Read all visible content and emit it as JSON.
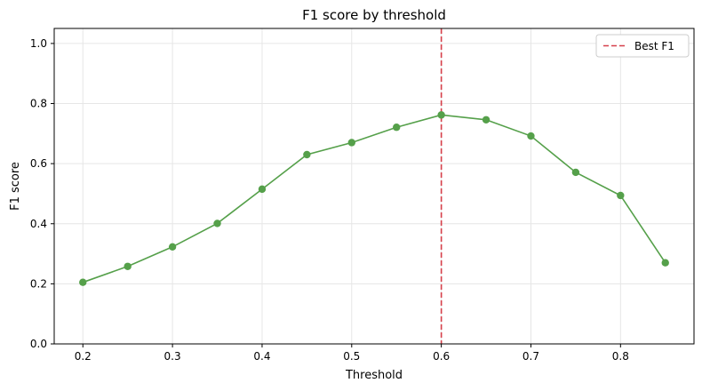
{
  "chart_data": {
    "type": "line",
    "title": "F1 score by threshold",
    "xlabel": "Threshold",
    "ylabel": "F1 score",
    "xlim": [
      0.168,
      0.882
    ],
    "ylim": [
      0.0,
      1.05
    ],
    "xticks": [
      0.2,
      0.3,
      0.4,
      0.5,
      0.6,
      0.7,
      0.8
    ],
    "xtick_labels": [
      "0.2",
      "0.3",
      "0.4",
      "0.5",
      "0.6",
      "0.7",
      "0.8"
    ],
    "yticks": [
      0.0,
      0.2,
      0.4,
      0.6,
      0.8,
      1.0
    ],
    "ytick_labels": [
      "0.0",
      "0.2",
      "0.4",
      "0.6",
      "0.8",
      "1.0"
    ],
    "grid": true,
    "legend_position": "top-right",
    "x": [
      0.2,
      0.25,
      0.3,
      0.35,
      0.4,
      0.45,
      0.5,
      0.55,
      0.6,
      0.65,
      0.7,
      0.75,
      0.8,
      0.85
    ],
    "series": [
      {
        "values": [
          0.205,
          0.258,
          0.323,
          0.401,
          0.515,
          0.63,
          0.67,
          0.721,
          0.762,
          0.746,
          0.692,
          0.571,
          0.494,
          0.27
        ],
        "color": "#55a04a",
        "marker": "circle"
      }
    ],
    "vlines": [
      {
        "name": "Best F1",
        "x": 0.6,
        "color": "#d6404a",
        "style": "dashed"
      }
    ]
  }
}
